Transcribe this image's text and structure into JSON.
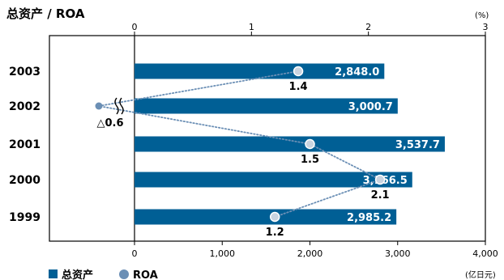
{
  "chart_data": {
    "type": "bar",
    "title": "总资产 / ROA",
    "orientation": "horizontal",
    "categories": [
      "2003",
      "2002",
      "2001",
      "2000",
      "1999"
    ],
    "series": [
      {
        "name": "总资产",
        "values": [
          2848.0,
          3000.7,
          3537.7,
          3166.5,
          2985.2
        ],
        "labels": [
          "2,848.0",
          "3,000.7",
          "3,537.7",
          "3,166.5",
          "2,985.2"
        ],
        "axis": "bottom",
        "color": "#005f95"
      },
      {
        "name": "ROA",
        "values": [
          1.4,
          -0.6,
          1.5,
          2.1,
          1.2
        ],
        "labels": [
          "1.4",
          "△0.6",
          "1.5",
          "2.1",
          "1.2"
        ],
        "axis": "top",
        "color": "#6b8fb5"
      }
    ],
    "bottom_axis": {
      "range": [
        0,
        4000
      ],
      "ticks": [
        "0",
        "1,000",
        "2,000",
        "3,000",
        "4,000"
      ],
      "unit": "(亿日元)"
    },
    "top_axis": {
      "range": [
        0,
        3
      ],
      "ticks": [
        "0",
        "1",
        "2",
        "3"
      ],
      "unit": "(%)"
    },
    "axis_break": "negative ROA drawn left of zero",
    "legend": {
      "position": "bottom-left",
      "items": [
        "总资产",
        "ROA"
      ]
    },
    "grid": false
  }
}
